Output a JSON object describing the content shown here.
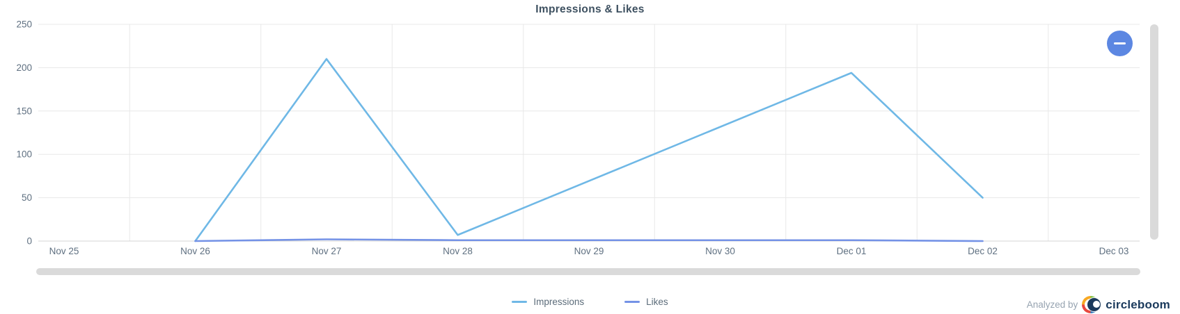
{
  "title": "Impressions & Likes",
  "chart_data": {
    "type": "line",
    "title": "Impressions & Likes",
    "x": [
      "Nov 25",
      "Nov 26",
      "Nov 27",
      "Nov 28",
      "Nov 29",
      "Nov 30",
      "Dec 01",
      "Dec 02",
      "Dec 03"
    ],
    "series": [
      {
        "name": "Impressions",
        "color": "#6fb8e6",
        "values": [
          null,
          0,
          210,
          7,
          null,
          null,
          194,
          50,
          null
        ]
      },
      {
        "name": "Likes",
        "color": "#7492e6",
        "values": [
          null,
          0,
          2,
          1,
          1,
          1,
          1,
          0,
          null
        ]
      }
    ],
    "ylim": [
      0,
      250
    ],
    "yticks": [
      0,
      50,
      100,
      150,
      200,
      250
    ],
    "grid": true,
    "legend_position": "bottom",
    "colors": {
      "grid": "#e8e8e8",
      "axis": "#d5d5d5",
      "tick_label": "#5f7081",
      "title": "#3d5060"
    }
  },
  "legend": {
    "items": [
      {
        "label": "Impressions",
        "color": "#6fb8e6"
      },
      {
        "label": "Likes",
        "color": "#7492e6"
      }
    ]
  },
  "controls": {
    "collapse_button": {
      "icon": "minus-icon",
      "color": "#5c87e2"
    }
  },
  "footer": {
    "analyzed_by": "Analyzed by",
    "brand": "circleboom",
    "brand_colors": {
      "navy": "#1b3a5c",
      "orange": "#f7a823",
      "green": "#7cc242",
      "red": "#e8483f",
      "blue": "#2e77bb"
    }
  }
}
